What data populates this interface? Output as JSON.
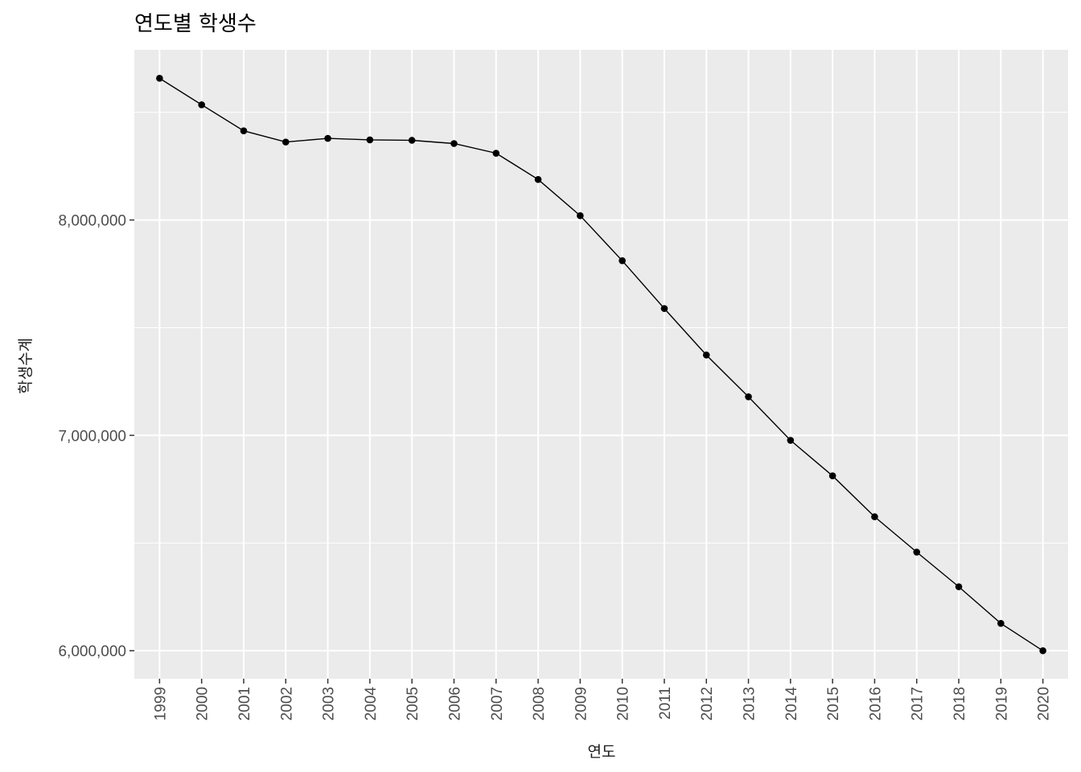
{
  "chart_data": {
    "type": "line",
    "title": "연도별 학생수",
    "xlabel": "연도",
    "ylabel": "학생수계",
    "categories": [
      "1999",
      "2000",
      "2001",
      "2002",
      "2003",
      "2004",
      "2005",
      "2006",
      "2007",
      "2008",
      "2009",
      "2010",
      "2011",
      "2012",
      "2013",
      "2014",
      "2015",
      "2016",
      "2017",
      "2018",
      "2019",
      "2020"
    ],
    "series": [
      {
        "values": [
          8658000,
          8535000,
          8414000,
          8362000,
          8379000,
          8372000,
          8370000,
          8355000,
          8310000,
          8188000,
          8020000,
          7811000,
          7589000,
          7373000,
          7179000,
          6977000,
          6812000,
          6622000,
          6458000,
          6297000,
          6127000,
          6000000
        ]
      }
    ],
    "yticks": [
      6000000,
      7000000,
      8000000
    ],
    "ytick_labels": [
      "6,000,000",
      "7,000,000",
      "8,000,000"
    ],
    "ylim": [
      5870000,
      8790000
    ],
    "grid": true,
    "colors": {
      "panel_background": "#EBEBEB",
      "grid_line": "#FFFFFF",
      "line": "#000000",
      "point": "#000000"
    }
  }
}
